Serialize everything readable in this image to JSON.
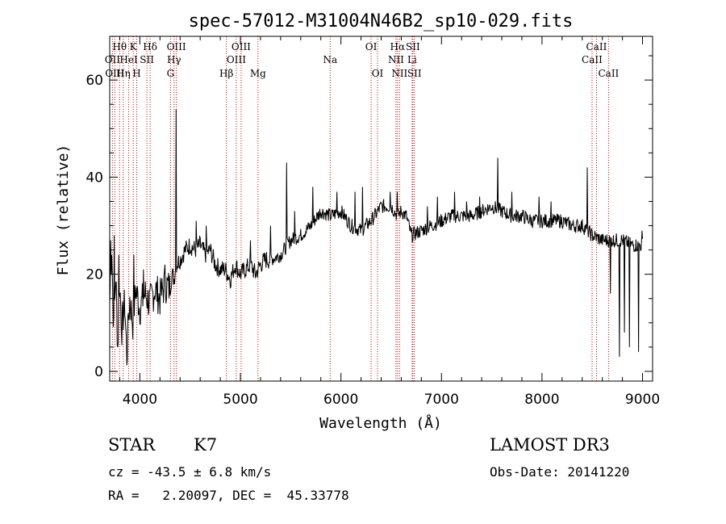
{
  "chart_data": {
    "type": "line",
    "title": "spec-57012-M31004N46B2_sp10-029.fits",
    "xlabel": "Wavelength (Å)",
    "ylabel": "Flux (relative)",
    "xlim": [
      3700,
      9100
    ],
    "ylim": [
      -2,
      69
    ],
    "x_ticks": [
      4000,
      5000,
      6000,
      7000,
      8000,
      9000
    ],
    "y_ticks": [
      0,
      20,
      40,
      60
    ],
    "line_color": "#000000",
    "marker_color": "#cc0000",
    "spectrum_anchors": [
      [
        3700,
        14
      ],
      [
        3720,
        26
      ],
      [
        3740,
        8
      ],
      [
        3760,
        20
      ],
      [
        3780,
        5
      ],
      [
        3800,
        18
      ],
      [
        3820,
        9
      ],
      [
        3850,
        14
      ],
      [
        3870,
        3
      ],
      [
        3900,
        15
      ],
      [
        3930,
        10
      ],
      [
        3960,
        17
      ],
      [
        4000,
        13
      ],
      [
        4050,
        16
      ],
      [
        4100,
        14
      ],
      [
        4150,
        17
      ],
      [
        4200,
        15
      ],
      [
        4250,
        18
      ],
      [
        4300,
        17
      ],
      [
        4320,
        20
      ],
      [
        4340,
        19
      ],
      [
        4360,
        22
      ],
      [
        4400,
        23
      ],
      [
        4450,
        25
      ],
      [
        4500,
        26
      ],
      [
        4550,
        25
      ],
      [
        4600,
        26
      ],
      [
        4650,
        24
      ],
      [
        4700,
        25
      ],
      [
        4750,
        22
      ],
      [
        4800,
        21
      ],
      [
        4850,
        21
      ],
      [
        4900,
        19
      ],
      [
        4950,
        22
      ],
      [
        5000,
        20
      ],
      [
        5050,
        21
      ],
      [
        5100,
        22
      ],
      [
        5150,
        20
      ],
      [
        5200,
        22
      ],
      [
        5250,
        23
      ],
      [
        5300,
        23
      ],
      [
        5400,
        24
      ],
      [
        5500,
        27
      ],
      [
        5600,
        28
      ],
      [
        5700,
        30
      ],
      [
        5800,
        33
      ],
      [
        5900,
        32
      ],
      [
        6000,
        33
      ],
      [
        6100,
        30
      ],
      [
        6200,
        29
      ],
      [
        6300,
        31
      ],
      [
        6400,
        34
      ],
      [
        6500,
        34
      ],
      [
        6563,
        32
      ],
      [
        6600,
        33
      ],
      [
        6650,
        32
      ],
      [
        6700,
        28
      ],
      [
        6800,
        29
      ],
      [
        6900,
        30
      ],
      [
        7000,
        31
      ],
      [
        7100,
        32
      ],
      [
        7200,
        32
      ],
      [
        7300,
        32
      ],
      [
        7400,
        33
      ],
      [
        7500,
        34
      ],
      [
        7600,
        33
      ],
      [
        7700,
        32
      ],
      [
        7800,
        32
      ],
      [
        7900,
        31
      ],
      [
        8000,
        31
      ],
      [
        8100,
        31
      ],
      [
        8200,
        31
      ],
      [
        8300,
        30
      ],
      [
        8400,
        30
      ],
      [
        8500,
        28
      ],
      [
        8600,
        27
      ],
      [
        8700,
        27
      ],
      [
        8800,
        27
      ],
      [
        8900,
        26
      ],
      [
        9000,
        26
      ]
    ],
    "spectrum_spikes": [
      [
        3710,
        27
      ],
      [
        3745,
        28
      ],
      [
        3790,
        24
      ],
      [
        3885,
        12
      ],
      [
        3940,
        24
      ],
      [
        4035,
        21
      ],
      [
        4210,
        18
      ],
      [
        4250,
        22
      ],
      [
        4362,
        54
      ],
      [
        4560,
        31
      ],
      [
        4660,
        30
      ],
      [
        5100,
        27
      ],
      [
        5300,
        30
      ],
      [
        5460,
        43
      ],
      [
        5540,
        33
      ],
      [
        5720,
        38
      ],
      [
        5960,
        37
      ],
      [
        6140,
        37
      ],
      [
        6215,
        38
      ],
      [
        6490,
        37
      ],
      [
        6560,
        37
      ],
      [
        6860,
        34
      ],
      [
        6960,
        36
      ],
      [
        7130,
        37
      ],
      [
        7250,
        35
      ],
      [
        7380,
        36
      ],
      [
        7560,
        44
      ],
      [
        7700,
        37
      ],
      [
        7970,
        36
      ],
      [
        8090,
        35
      ],
      [
        8450,
        42
      ],
      [
        8680,
        16
      ],
      [
        8770,
        3
      ],
      [
        8820,
        8
      ],
      [
        8870,
        5
      ],
      [
        8960,
        4
      ],
      [
        8995,
        29
      ]
    ],
    "spectral_lines": [
      {
        "label": "Hθ",
        "wavelength": 3798,
        "row": 1
      },
      {
        "label": "OII",
        "wavelength": 3727,
        "row": 2
      },
      {
        "label": "OIII",
        "wavelength": 3750,
        "row": 3
      },
      {
        "label": "K",
        "wavelength": 3934,
        "row": 1
      },
      {
        "label": "HeI",
        "wavelength": 3889,
        "row": 2
      },
      {
        "label": "Hη",
        "wavelength": 3835,
        "row": 3
      },
      {
        "label": "SII",
        "wavelength": 4070,
        "row": 2
      },
      {
        "label": "H",
        "wavelength": 3969,
        "row": 3
      },
      {
        "label": "Hδ",
        "wavelength": 4102,
        "row": 1
      },
      {
        "label": "OIII",
        "wavelength": 4363,
        "row": 1
      },
      {
        "label": "Hγ",
        "wavelength": 4340,
        "row": 2
      },
      {
        "label": "G",
        "wavelength": 4305,
        "row": 3
      },
      {
        "label": "OIII",
        "wavelength": 5007,
        "row": 1
      },
      {
        "label": "OIII",
        "wavelength": 4959,
        "row": 2
      },
      {
        "label": "Hβ",
        "wavelength": 4861,
        "row": 3
      },
      {
        "label": "Mg",
        "wavelength": 5175,
        "row": 3
      },
      {
        "label": "Na",
        "wavelength": 5893,
        "row": 2
      },
      {
        "label": "OI",
        "wavelength": 6300,
        "row": 1
      },
      {
        "label": "OI",
        "wavelength": 6364,
        "row": 3
      },
      {
        "label": "Hα",
        "wavelength": 6563,
        "row": 1
      },
      {
        "label": "NII",
        "wavelength": 6548,
        "row": 2
      },
      {
        "label": "NII",
        "wavelength": 6583,
        "row": 3
      },
      {
        "label": "SII",
        "wavelength": 6716,
        "row": 1
      },
      {
        "label": "Li",
        "wavelength": 6708,
        "row": 2
      },
      {
        "label": "SII",
        "wavelength": 6731,
        "row": 3
      },
      {
        "label": "CaII",
        "wavelength": 8542,
        "row": 1
      },
      {
        "label": "CaII",
        "wavelength": 8498,
        "row": 2
      },
      {
        "label": "CaII",
        "wavelength": 8662,
        "row": 3
      }
    ]
  },
  "info": {
    "object_class": "STAR",
    "subclass": "K7",
    "survey": "LAMOST DR3",
    "cz_line": "cz = -43.5 ± 6.8 km/s",
    "obs_date_line": "Obs-Date: 20141220",
    "radec_line": "RA =   2.20097, DEC =  45.33778"
  }
}
